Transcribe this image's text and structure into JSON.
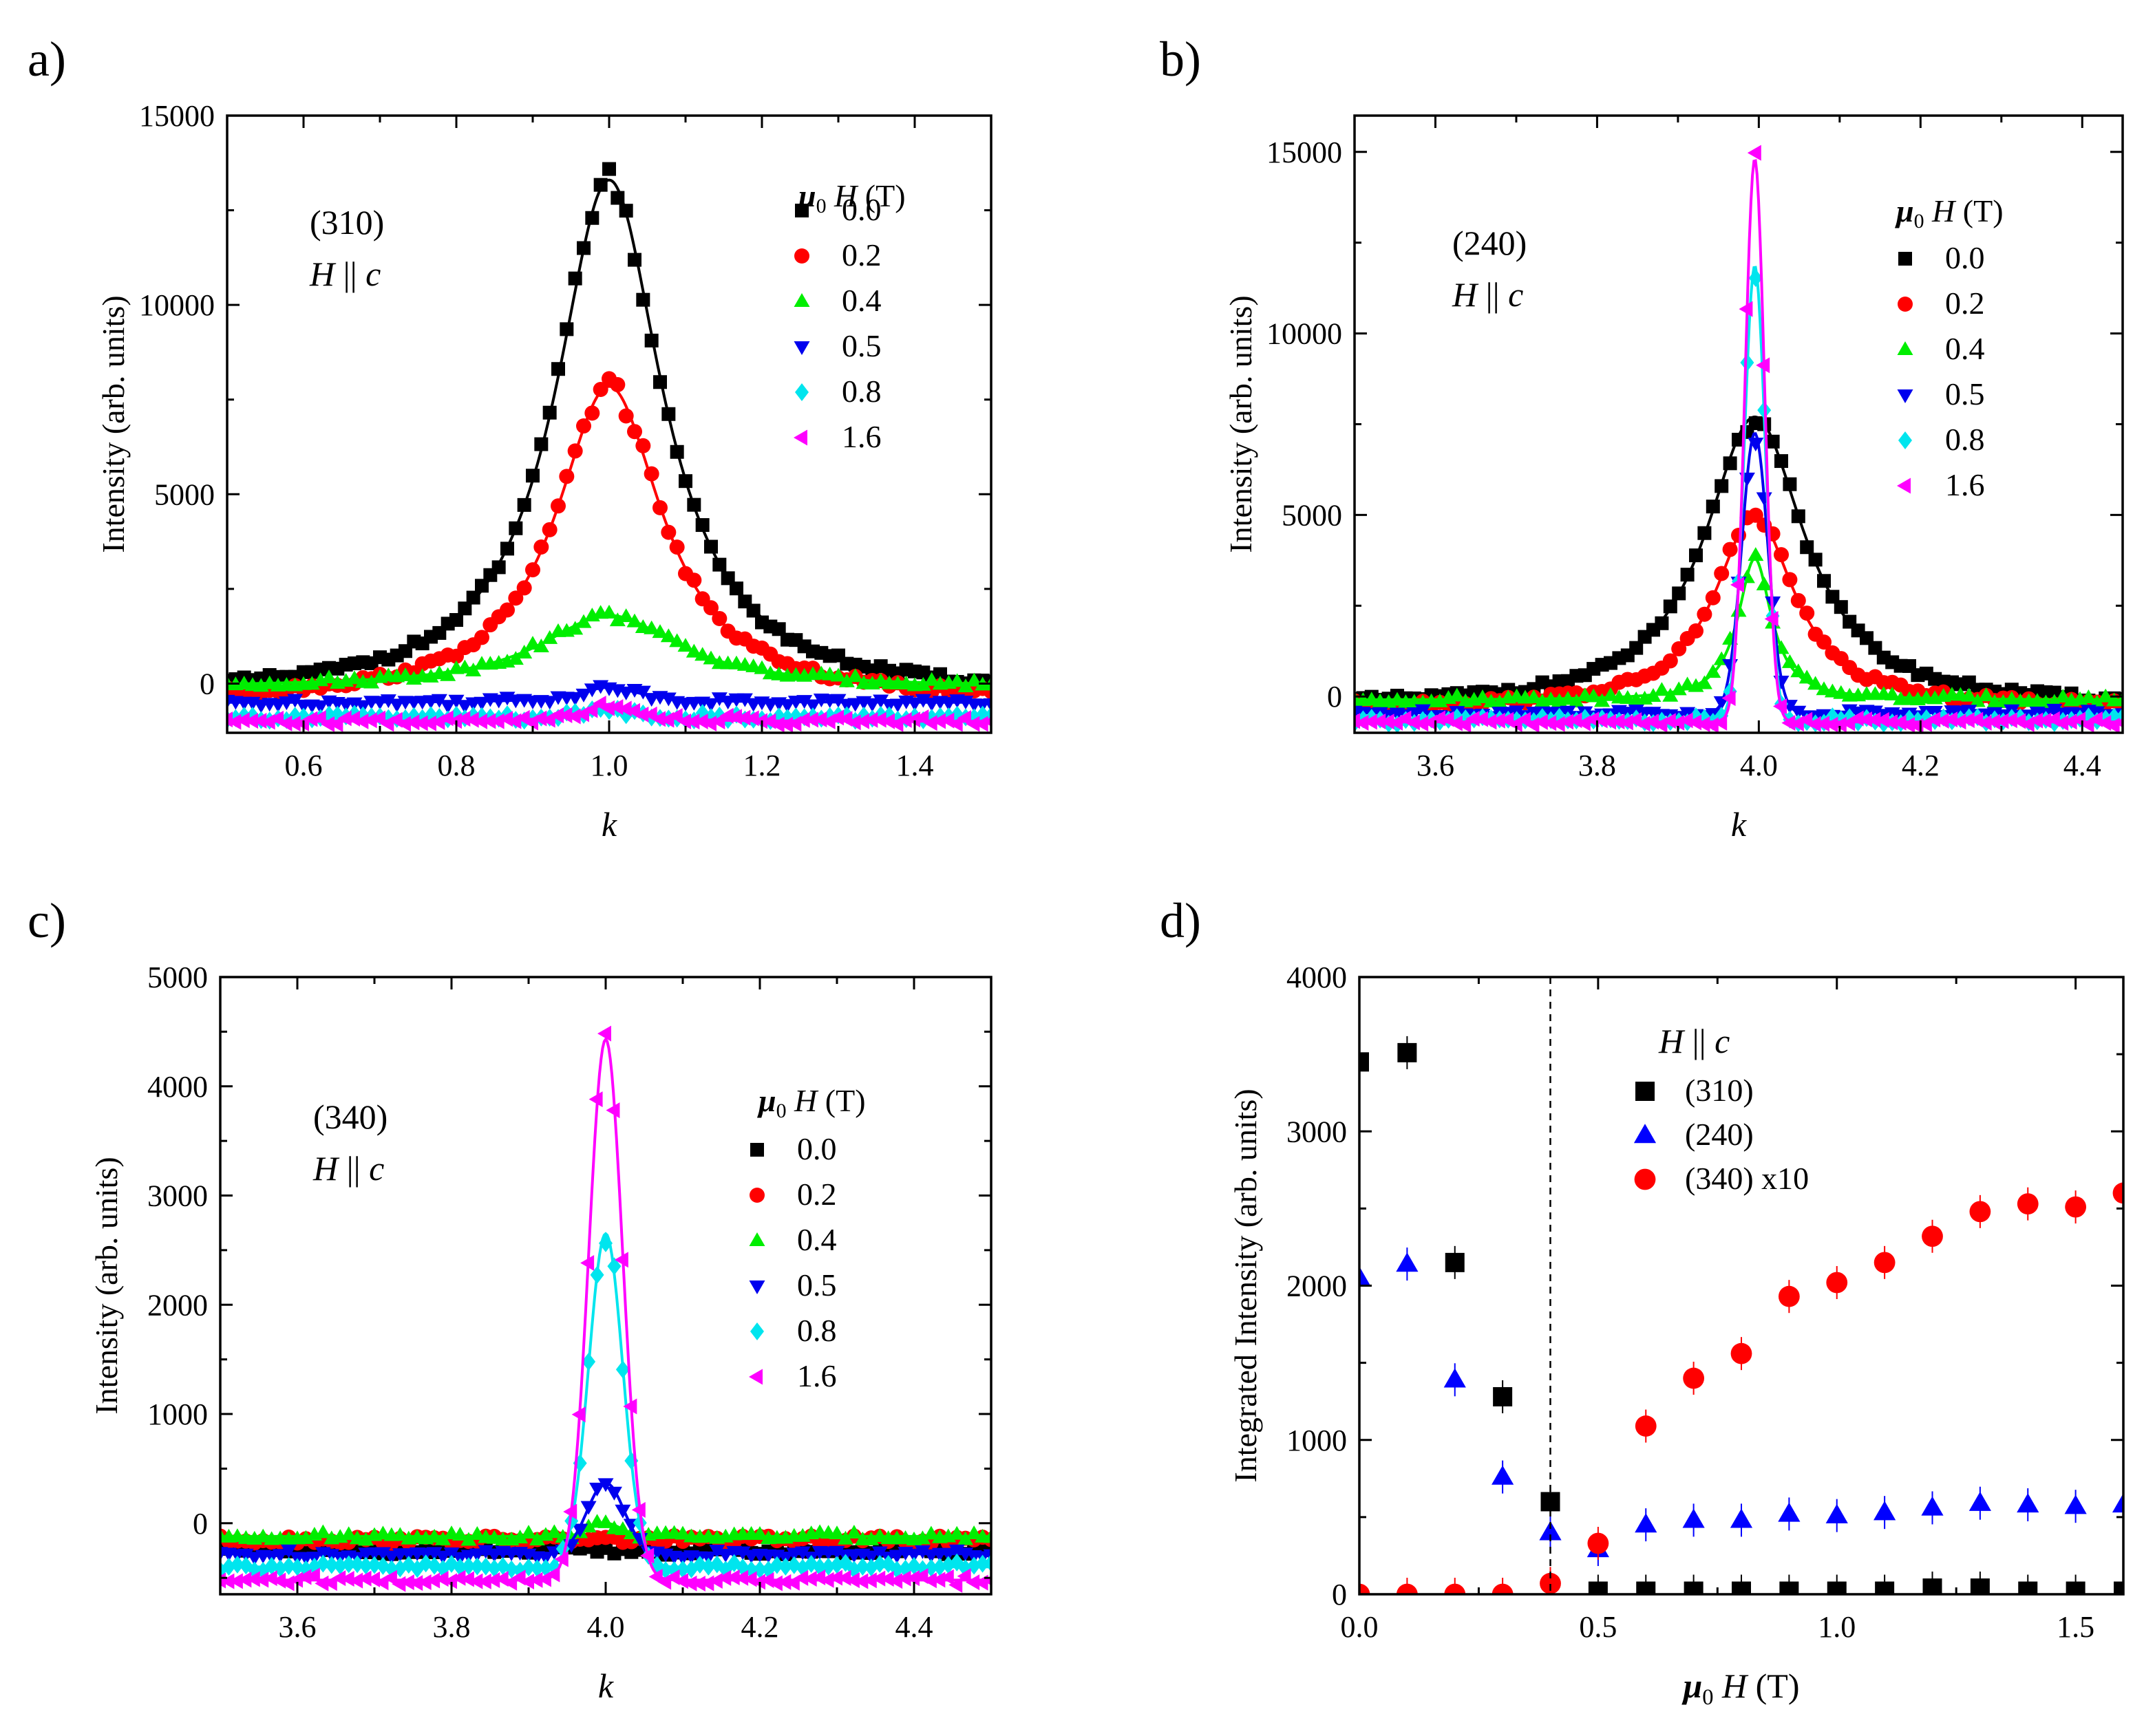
{
  "chart_data": [
    {
      "id": "a",
      "type": "scatter",
      "panel_label": "a)",
      "reflection": "(310)",
      "field_direction": "H || c",
      "xlabel": "k",
      "ylabel": "Intensity (arb. units)",
      "xlim": [
        0.5,
        1.5
      ],
      "ylim": [
        -1300,
        15000
      ],
      "xticks": [
        0.6,
        0.8,
        1.0,
        1.2,
        1.4
      ],
      "xtick_labels": [
        "0.6",
        "0.8",
        "1.0",
        "1.2",
        "1.4"
      ],
      "yticks": [
        0,
        5000,
        10000,
        15000
      ],
      "ytick_labels": [
        "0",
        "5000",
        "10000",
        "15000"
      ],
      "legend_title": "μ0 H (T)",
      "legend_position": "upper-right",
      "series": [
        {
          "name": "0.0",
          "color": "#000000",
          "marker": "square",
          "shape": "lorentz",
          "peak_x": 1.0,
          "amp": 13650,
          "width": 0.085,
          "base": -350
        },
        {
          "name": "0.2",
          "color": "#ff0000",
          "marker": "circle",
          "shape": "lorentz",
          "peak_x": 1.0,
          "amp": 8300,
          "width": 0.085,
          "base": -450
        },
        {
          "name": "0.4",
          "color": "#00ee00",
          "marker": "triangle-up",
          "shape": "lorentz",
          "peak_x": 1.0,
          "amp": 1900,
          "width": 0.11,
          "base": -100
        },
        {
          "name": "0.5",
          "color": "#0000ee",
          "marker": "triangle-down",
          "shape": "lorentz",
          "peak_x": 1.0,
          "amp": 400,
          "width": 0.05,
          "base": -500
        },
        {
          "name": "0.8",
          "color": "#00e5ee",
          "marker": "diamond",
          "shape": "lorentz",
          "peak_x": 1.0,
          "amp": 250,
          "width": 0.03,
          "base": -900
        },
        {
          "name": "1.6",
          "color": "#ff00ff",
          "marker": "triangle-left",
          "shape": "lorentz",
          "peak_x": 1.0,
          "amp": 450,
          "width": 0.04,
          "base": -1000
        }
      ]
    },
    {
      "id": "b",
      "type": "scatter",
      "panel_label": "b)",
      "reflection": "(240)",
      "field_direction": "H || c",
      "xlabel": "k",
      "ylabel": "Intensity (arb. units)",
      "xlim": [
        3.5,
        4.45
      ],
      "ylim": [
        -1000,
        16000
      ],
      "xticks": [
        3.6,
        3.8,
        4.0,
        4.2,
        4.4
      ],
      "xtick_labels": [
        "3.6",
        "3.8",
        "4.0",
        "4.2",
        "4.4"
      ],
      "yticks": [
        0,
        5000,
        10000,
        15000
      ],
      "ytick_labels": [
        "0",
        "5000",
        "10000",
        "15000"
      ],
      "legend_title": "μ0 H (T)",
      "legend_position": "upper-right",
      "series": [
        {
          "name": "0.0",
          "color": "#000000",
          "marker": "square",
          "shape": "lorentz",
          "peak_x": 3.995,
          "amp": 8000,
          "width": 0.075,
          "base": -300
        },
        {
          "name": "0.2",
          "color": "#ff0000",
          "marker": "circle",
          "shape": "lorentz",
          "peak_x": 3.995,
          "amp": 5300,
          "width": 0.06,
          "base": -300
        },
        {
          "name": "0.4",
          "color": "#00ee00",
          "marker": "triangle-up",
          "shape": "lorentz",
          "peak_x": 3.995,
          "amp": 3900,
          "width": 0.025,
          "base": -100
        },
        {
          "name": "0.5",
          "color": "#0000ee",
          "marker": "triangle-down",
          "shape": "gauss",
          "peak_x": 3.995,
          "amp": 7700,
          "width": 0.016,
          "base": -450
        },
        {
          "name": "0.8",
          "color": "#00e5ee",
          "marker": "diamond",
          "shape": "gauss",
          "peak_x": 3.995,
          "amp": 12500,
          "width": 0.013,
          "base": -650
        },
        {
          "name": "1.6",
          "color": "#ff00ff",
          "marker": "triangle-left",
          "shape": "gauss",
          "peak_x": 3.995,
          "amp": 15500,
          "width": 0.012,
          "base": -700
        }
      ]
    },
    {
      "id": "c",
      "type": "scatter",
      "panel_label": "c)",
      "reflection": "(340)",
      "field_direction": "H || c",
      "xlabel": "k",
      "ylabel": "Intensity (arb. units)",
      "xlim": [
        3.5,
        4.5
      ],
      "ylim": [
        -650,
        5000
      ],
      "xticks": [
        3.6,
        3.8,
        4.0,
        4.2,
        4.4
      ],
      "xtick_labels": [
        "3.6",
        "3.8",
        "4.0",
        "4.2",
        "4.4"
      ],
      "yticks": [
        0,
        1000,
        2000,
        3000,
        4000,
        5000
      ],
      "ytick_labels": [
        "0",
        "1000",
        "2000",
        "3000",
        "4000",
        "5000"
      ],
      "legend_title": "μ0 H (T)",
      "legend_position": "upper-right",
      "series": [
        {
          "name": "0.0",
          "color": "#000000",
          "marker": "square",
          "shape": "gauss",
          "peak_x": 4.0,
          "amp": 0,
          "width": 0.03,
          "base": -250
        },
        {
          "name": "0.2",
          "color": "#ff0000",
          "marker": "circle",
          "shape": "gauss",
          "peak_x": 4.0,
          "amp": 0,
          "width": 0.03,
          "base": -150
        },
        {
          "name": "0.4",
          "color": "#00ee00",
          "marker": "triangle-up",
          "shape": "gauss",
          "peak_x": 4.0,
          "amp": 120,
          "width": 0.02,
          "base": -120
        },
        {
          "name": "0.5",
          "color": "#0000ee",
          "marker": "triangle-down",
          "shape": "gauss",
          "peak_x": 4.0,
          "amp": 650,
          "width": 0.024,
          "base": -280
        },
        {
          "name": "0.8",
          "color": "#00e5ee",
          "marker": "diamond",
          "shape": "gauss",
          "peak_x": 4.0,
          "amp": 3050,
          "width": 0.022,
          "base": -400
        },
        {
          "name": "1.6",
          "color": "#ff00ff",
          "marker": "triangle-left",
          "shape": "gauss",
          "peak_x": 4.0,
          "amp": 4950,
          "width": 0.022,
          "base": -520
        }
      ]
    },
    {
      "id": "d",
      "type": "scatter",
      "panel_label": "d)",
      "field_direction": "H || c",
      "xlabel": "μ0 H (T)",
      "ylabel": "Integrated Intensity (arb. units)",
      "xlim": [
        0,
        1.6
      ],
      "ylim": [
        0,
        4000
      ],
      "xticks": [
        0,
        0.5,
        1.0,
        1.5
      ],
      "xtick_labels": [
        "0.0",
        "0.5",
        "1.0",
        "1.5"
      ],
      "yticks": [
        0,
        1000,
        2000,
        3000,
        4000
      ],
      "ytick_labels": [
        "0",
        "1000",
        "2000",
        "3000",
        "4000"
      ],
      "vline_x": 0.4,
      "legend_position": "upper-right",
      "series": [
        {
          "name": "(310)",
          "color": "#000000",
          "marker": "square",
          "x": [
            0.0,
            0.1,
            0.2,
            0.3,
            0.4,
            0.5,
            0.6,
            0.7,
            0.8,
            0.9,
            1.0,
            1.1,
            1.2,
            1.3,
            1.4,
            1.5,
            1.6
          ],
          "y": [
            3450,
            3510,
            2150,
            1280,
            600,
            20,
            20,
            20,
            20,
            20,
            20,
            20,
            40,
            40,
            20,
            20,
            20
          ]
        },
        {
          "name": "(240)",
          "color": "#0000ff",
          "marker": "triangle-up",
          "x": [
            0.0,
            0.1,
            0.2,
            0.3,
            0.4,
            0.5,
            0.6,
            0.7,
            0.8,
            0.9,
            1.0,
            1.1,
            1.2,
            1.3,
            1.4,
            1.5,
            1.6
          ],
          "y": [
            2050,
            2140,
            1390,
            760,
            400,
            290,
            450,
            480,
            480,
            520,
            510,
            530,
            560,
            590,
            580,
            570,
            580
          ]
        },
        {
          "name": "(340) x10",
          "color": "#ff0000",
          "marker": "circle",
          "x": [
            0.0,
            0.1,
            0.2,
            0.3,
            0.4,
            0.5,
            0.6,
            0.7,
            0.8,
            0.9,
            1.0,
            1.1,
            1.2,
            1.3,
            1.4,
            1.5,
            1.6
          ],
          "y": [
            0,
            0,
            0,
            0,
            70,
            330,
            1090,
            1400,
            1560,
            1930,
            2020,
            2150,
            2320,
            2480,
            2530,
            2510,
            2600
          ]
        }
      ]
    }
  ]
}
